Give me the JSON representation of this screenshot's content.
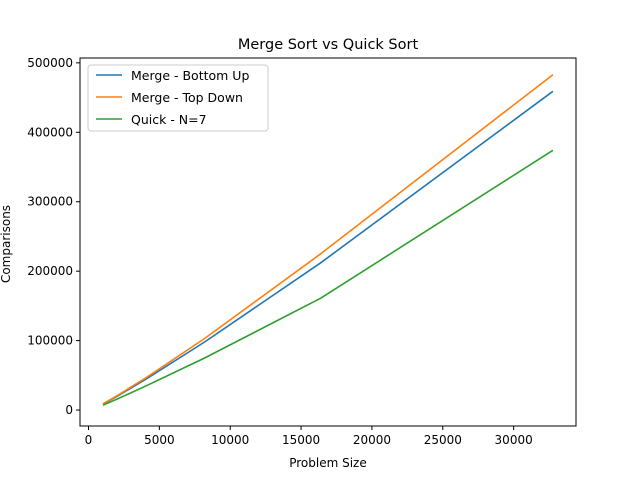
{
  "chart_data": {
    "type": "line",
    "title": "Merge Sort vs Quick Sort",
    "xlabel": "Problem Size",
    "ylabel": "Comparisons",
    "xlim": [
      -600,
      34400
    ],
    "ylim": [
      -23000,
      507000
    ],
    "xticks": [
      0,
      5000,
      10000,
      15000,
      20000,
      25000,
      30000
    ],
    "xtick_labels": [
      "0",
      "5000",
      "10000",
      "15000",
      "20000",
      "25000",
      "30000"
    ],
    "yticks": [
      0,
      100000,
      200000,
      300000,
      400000,
      500000
    ],
    "ytick_labels": [
      "0",
      "100000",
      "200000",
      "300000",
      "400000",
      "500000"
    ],
    "grid": false,
    "legend": "top-left",
    "series": [
      {
        "name": "Merge - Bottom Up",
        "color": "#1f77b4",
        "x": [
          1024,
          2048,
          4096,
          8192,
          16384,
          32768
        ],
        "y": [
          8700,
          20000,
          45000,
          98000,
          212000,
          459000
        ]
      },
      {
        "name": "Merge - Top Down",
        "color": "#ff7f0e",
        "x": [
          1024,
          2048,
          4096,
          8192,
          16384,
          32768
        ],
        "y": [
          9000,
          21000,
          47000,
          103000,
          225000,
          483000
        ]
      },
      {
        "name": "Quick - N=7",
        "color": "#2ca02c",
        "x": [
          1024,
          2048,
          4096,
          8192,
          16384,
          32768
        ],
        "y": [
          7000,
          16000,
          35000,
          75000,
          161000,
          374000
        ]
      }
    ]
  }
}
